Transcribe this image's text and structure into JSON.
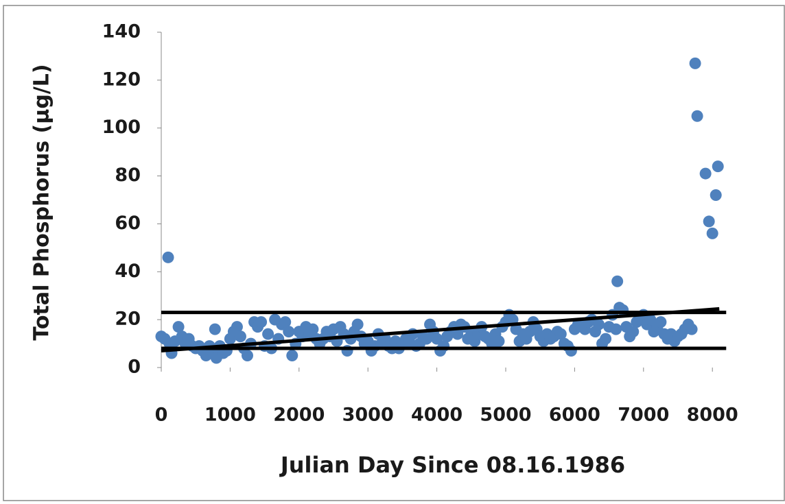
{
  "chart_data": {
    "type": "scatter",
    "ylabel": "Total Phosphorus (µg/L)",
    "xlabel": "Julian Day Since 08.16.1986",
    "xlim": [
      0,
      8500
    ],
    "ylim": [
      0,
      140
    ],
    "xticks": [
      0,
      1000,
      2000,
      3000,
      4000,
      5000,
      6000,
      7000,
      8000
    ],
    "yticks": [
      0,
      20,
      40,
      60,
      80,
      100,
      120,
      140
    ],
    "series": [
      {
        "kind": "scatter",
        "color": "#4f81bd",
        "x": [
          0,
          50,
          100,
          120,
          150,
          200,
          250,
          300,
          350,
          400,
          450,
          500,
          550,
          600,
          650,
          700,
          750,
          780,
          800,
          850,
          900,
          950,
          1000,
          1050,
          1100,
          1150,
          1200,
          1250,
          1300,
          1350,
          1400,
          1450,
          1500,
          1550,
          1600,
          1650,
          1700,
          1750,
          1800,
          1850,
          1900,
          1950,
          2000,
          2050,
          2100,
          2150,
          2200,
          2250,
          2300,
          2350,
          2400,
          2450,
          2500,
          2550,
          2600,
          2650,
          2700,
          2750,
          2800,
          2850,
          2900,
          2950,
          3000,
          3050,
          3100,
          3150,
          3200,
          3250,
          3300,
          3350,
          3400,
          3450,
          3500,
          3550,
          3600,
          3650,
          3700,
          3750,
          3800,
          3850,
          3900,
          3950,
          4000,
          4050,
          4100,
          4150,
          4200,
          4250,
          4300,
          4350,
          4400,
          4450,
          4500,
          4550,
          4600,
          4650,
          4700,
          4750,
          4800,
          4850,
          4900,
          4950,
          5000,
          5050,
          5100,
          5150,
          5200,
          5250,
          5300,
          5350,
          5400,
          5450,
          5500,
          5550,
          5600,
          5650,
          5700,
          5750,
          5800,
          5850,
          5900,
          5950,
          6000,
          6050,
          6100,
          6150,
          6200,
          6250,
          6300,
          6350,
          6400,
          6450,
          6500,
          6550,
          6600,
          6620,
          6650,
          6700,
          6750,
          6800,
          6850,
          6900,
          6950,
          7000,
          7050,
          7100,
          7150,
          7200,
          7250,
          7300,
          7350,
          7400,
          7450,
          7500,
          7550,
          7600,
          7650,
          7700,
          7750,
          7780,
          7900,
          7950,
          8000,
          8050,
          8080
        ],
        "values": [
          13,
          12,
          46,
          10,
          6,
          11,
          17,
          13,
          10,
          12,
          9,
          8,
          9,
          7,
          5,
          9,
          6,
          16,
          4,
          9,
          6,
          7,
          12,
          15,
          17,
          13,
          8,
          5,
          10,
          19,
          17,
          19,
          9,
          14,
          8,
          20,
          12,
          18,
          19,
          15,
          5,
          10,
          15,
          13,
          17,
          14,
          16,
          12,
          10,
          12,
          15,
          13,
          16,
          11,
          17,
          14,
          7,
          12,
          15,
          18,
          13,
          10,
          11,
          7,
          9,
          14,
          10,
          12,
          9,
          8,
          11,
          8,
          10,
          12,
          11,
          14,
          9,
          10,
          13,
          12,
          18,
          15,
          12,
          7,
          9,
          13,
          15,
          17,
          14,
          18,
          17,
          12,
          15,
          11,
          14,
          17,
          13,
          12,
          10,
          14,
          11,
          17,
          19,
          22,
          20,
          16,
          11,
          14,
          12,
          15,
          19,
          16,
          13,
          11,
          14,
          12,
          13,
          15,
          14,
          10,
          9,
          7,
          16,
          18,
          17,
          16,
          19,
          20,
          15,
          18,
          10,
          12,
          17,
          22,
          16,
          36,
          25,
          24,
          17,
          13,
          15,
          19,
          20,
          22,
          18,
          20,
          15,
          17,
          19,
          14,
          12,
          14,
          11,
          13,
          14,
          16,
          18,
          16,
          127,
          105,
          81,
          61,
          56,
          72,
          84
        ]
      },
      {
        "kind": "line",
        "color": "#000000",
        "x": [
          0,
          8200
        ],
        "values": [
          23,
          23
        ]
      },
      {
        "kind": "line",
        "color": "#000000",
        "x": [
          0,
          8200
        ],
        "values": [
          8,
          8
        ]
      },
      {
        "kind": "line",
        "color": "#000000",
        "x": [
          0,
          8100
        ],
        "values": [
          7,
          24.5
        ]
      }
    ]
  }
}
